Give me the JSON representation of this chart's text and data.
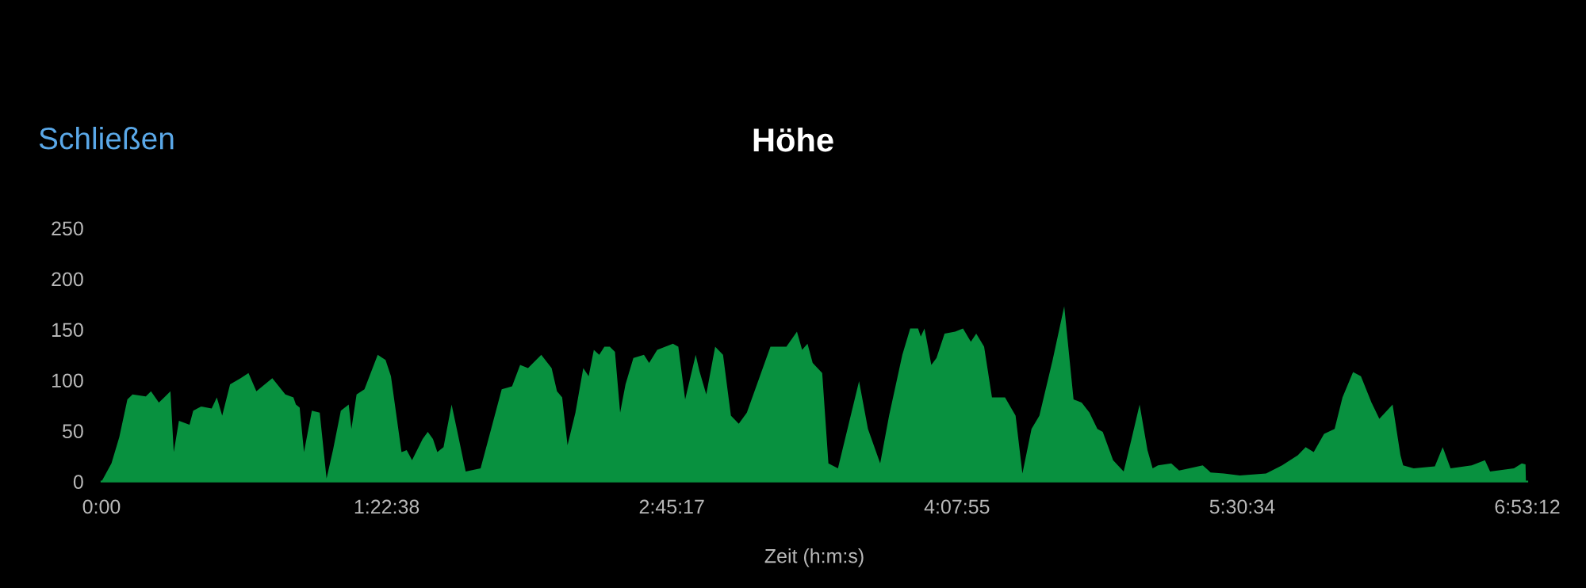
{
  "chart_data": {
    "type": "area",
    "title": "Höhe",
    "xlabel": "Zeit (h:m:s)",
    "annotations": [
      "Schließen"
    ],
    "x": [
      0.0,
      0.048,
      0.086,
      0.125,
      0.15,
      0.214,
      0.239,
      0.277,
      0.303,
      0.333,
      0.349,
      0.374,
      0.425,
      0.443,
      0.481,
      0.532,
      0.557,
      0.583,
      0.621,
      0.672,
      0.71,
      0.748,
      0.825,
      0.888,
      0.927,
      0.939,
      0.957,
      0.978,
      1.016,
      1.054,
      1.087,
      1.118,
      1.156,
      1.194,
      1.207,
      1.232,
      1.27,
      1.334,
      1.372,
      1.398,
      1.449,
      1.474,
      1.5,
      1.551,
      1.576,
      1.601,
      1.622,
      1.652,
      1.691,
      1.716,
      1.759,
      1.831,
      1.882,
      1.933,
      1.983,
      2.022,
      2.06,
      2.124,
      2.174,
      2.2,
      2.225,
      2.251,
      2.289,
      2.327,
      2.353,
      2.378,
      2.404,
      2.429,
      2.455,
      2.48,
      2.505,
      2.531,
      2.569,
      2.62,
      2.645,
      2.684,
      2.76,
      2.786,
      2.819,
      2.87,
      2.888,
      2.921,
      2.964,
      3.002,
      3.04,
      3.078,
      3.117,
      3.18,
      3.231,
      3.308,
      3.359,
      3.384,
      3.41,
      3.435,
      3.481,
      3.511,
      3.557,
      3.659,
      3.702,
      3.761,
      3.804,
      3.868,
      3.906,
      3.944,
      3.957,
      3.975,
      4.008,
      4.033,
      4.072,
      4.123,
      4.161,
      4.199,
      4.225,
      4.263,
      4.301,
      4.364,
      4.415,
      4.448,
      4.492,
      4.53,
      4.594,
      4.65,
      4.695,
      4.734,
      4.772,
      4.81,
      4.836,
      4.886,
      4.937,
      4.975,
      5.014,
      5.052,
      5.077,
      5.103,
      5.167,
      5.205,
      5.319,
      5.357,
      5.421,
      5.498,
      5.625,
      5.702,
      5.778,
      5.816,
      5.855,
      5.905,
      5.956,
      5.994,
      6.045,
      6.083,
      6.134,
      6.172,
      6.236,
      6.274,
      6.287,
      6.338,
      6.44,
      6.478,
      6.516,
      6.618,
      6.682,
      6.707,
      6.822,
      6.86,
      6.878,
      6.88
    ],
    "series": [
      {
        "color": "#08913f",
        "values": [
          0,
          18,
          44,
          81,
          86,
          84,
          89,
          78,
          83,
          89,
          29,
          60,
          56,
          70,
          74,
          72,
          83,
          65,
          96,
          102,
          107,
          89,
          102,
          86,
          83,
          76,
          73,
          29,
          70,
          68,
          3,
          31,
          70,
          76,
          52,
          86,
          91,
          125,
          120,
          104,
          29,
          31,
          21,
          42,
          49,
          42,
          29,
          34,
          76,
          52,
          10,
          13,
          52,
          91,
          94,
          115,
          112,
          125,
          112,
          89,
          83,
          36,
          68,
          112,
          104,
          130,
          125,
          133,
          133,
          128,
          68,
          96,
          122,
          125,
          117,
          130,
          136,
          133,
          81,
          125,
          109,
          86,
          133,
          125,
          65,
          57,
          68,
          104,
          133,
          133,
          148,
          130,
          136,
          117,
          107,
          18,
          13,
          99,
          52,
          18,
          65,
          125,
          151,
          151,
          143,
          151,
          115,
          122,
          146,
          148,
          151,
          138,
          146,
          133,
          83,
          83,
          65,
          8,
          52,
          65,
          120,
          173,
          81,
          78,
          68,
          52,
          49,
          21,
          10,
          42,
          76,
          31,
          13,
          16,
          18,
          11,
          16,
          9,
          8,
          6,
          8,
          16,
          26,
          34,
          29,
          47,
          52,
          83,
          108,
          104,
          78,
          62,
          76,
          26,
          16,
          13,
          15,
          34,
          13,
          16,
          21,
          10,
          13,
          18,
          17,
          0
        ]
      }
    ],
    "xlim": [
      0,
      6.886667
    ],
    "xticks": [
      {
        "value": 0,
        "label": "0:00"
      },
      {
        "value": 1.377333,
        "label": "1:22:38"
      },
      {
        "value": 2.754667,
        "label": "2:45:17"
      },
      {
        "value": 4.132,
        "label": "4:07:55"
      },
      {
        "value": 5.509333,
        "label": "5:30:34"
      },
      {
        "value": 6.886667,
        "label": "6:53:12"
      }
    ],
    "ylim": [
      0,
      250
    ],
    "yticks": [
      0,
      50,
      100,
      150,
      200,
      250
    ],
    "grid": false,
    "legend": false
  }
}
